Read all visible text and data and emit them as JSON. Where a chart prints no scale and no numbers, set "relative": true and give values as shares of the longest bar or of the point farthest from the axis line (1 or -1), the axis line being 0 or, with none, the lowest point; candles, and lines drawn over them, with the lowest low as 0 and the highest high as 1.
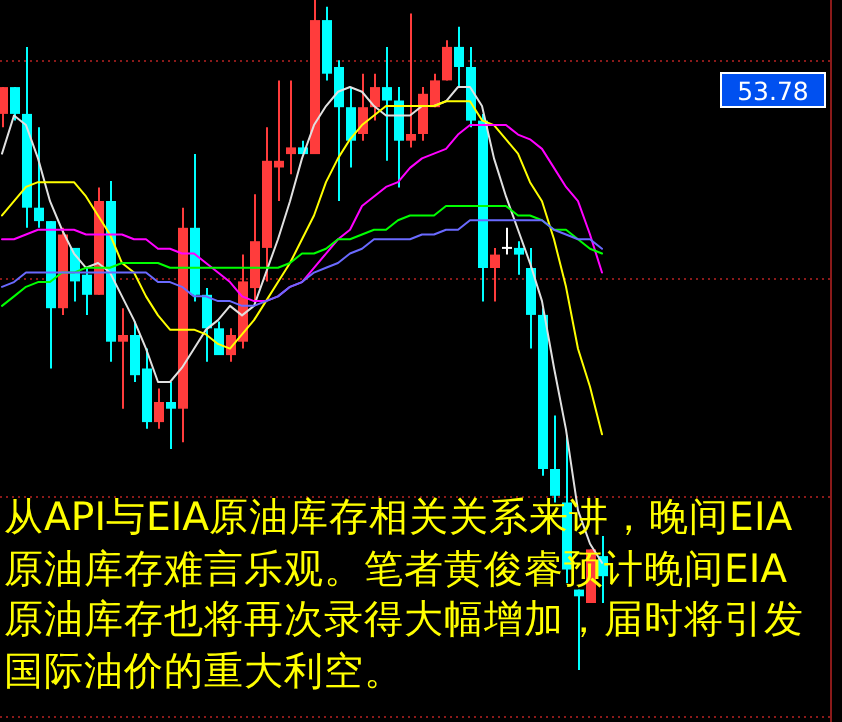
{
  "chart_data": [
    {
      "type": "candlestick",
      "relative": true,
      "ref_lines": [
        {
          "axis": "y",
          "value": 0.91,
          "color": "#8b1a1a",
          "line_style": "dotted"
        },
        {
          "axis": "y",
          "value": 0.585,
          "color": "#8b1a1a",
          "line_style": "dotted"
        },
        {
          "axis": "y",
          "value": 0.26,
          "color": "#8b1a1a",
          "line_style": "dotted"
        },
        {
          "axis": "y",
          "value": -0.07,
          "color": "#8b1a1a",
          "line_style": "dotted"
        }
      ],
      "categories": [
        null,
        null,
        null,
        null,
        null,
        null,
        null,
        null,
        null,
        null,
        null,
        null,
        null,
        null,
        null,
        null,
        null,
        null,
        null,
        null,
        null,
        null,
        null,
        null,
        null,
        null,
        null,
        null,
        null,
        null,
        null,
        null,
        null,
        null,
        null,
        null,
        null,
        null,
        null,
        null,
        null,
        null,
        null,
        null,
        null,
        null,
        null,
        null,
        null,
        null,
        null
      ],
      "ohlc": [
        [
          0.83,
          0.87,
          0.81,
          0.87
        ],
        [
          0.87,
          0.87,
          0.82,
          0.83
        ],
        [
          0.83,
          0.93,
          0.66,
          0.69
        ],
        [
          0.69,
          0.81,
          0.66,
          0.67
        ],
        [
          0.67,
          0.67,
          0.45,
          0.54
        ],
        [
          0.54,
          0.66,
          0.53,
          0.65
        ],
        [
          0.63,
          0.63,
          0.55,
          0.58
        ],
        [
          0.59,
          0.6,
          0.53,
          0.56
        ],
        [
          0.56,
          0.72,
          0.56,
          0.7
        ],
        [
          0.7,
          0.73,
          0.46,
          0.49
        ],
        [
          0.49,
          0.54,
          0.39,
          0.5
        ],
        [
          0.5,
          0.52,
          0.43,
          0.44
        ],
        [
          0.45,
          0.48,
          0.36,
          0.37
        ],
        [
          0.37,
          0.42,
          0.36,
          0.4
        ],
        [
          0.4,
          0.43,
          0.33,
          0.39
        ],
        [
          0.39,
          0.69,
          0.34,
          0.66
        ],
        [
          0.66,
          0.77,
          0.55,
          0.56
        ],
        [
          0.56,
          0.57,
          0.46,
          0.51
        ],
        [
          0.51,
          0.52,
          0.47,
          0.47
        ],
        [
          0.47,
          0.51,
          0.46,
          0.5
        ],
        [
          0.49,
          0.62,
          0.48,
          0.58
        ],
        [
          0.57,
          0.71,
          0.55,
          0.64
        ],
        [
          0.63,
          0.81,
          0.58,
          0.76
        ],
        [
          0.75,
          0.88,
          0.7,
          0.76
        ],
        [
          0.77,
          0.88,
          0.74,
          0.78
        ],
        [
          0.78,
          0.79,
          0.77,
          0.77
        ],
        [
          0.77,
          1.0,
          0.77,
          0.97
        ],
        [
          0.97,
          0.99,
          0.88,
          0.89
        ],
        [
          0.9,
          0.91,
          0.7,
          0.84
        ],
        [
          0.84,
          0.87,
          0.75,
          0.79
        ],
        [
          0.8,
          0.89,
          0.79,
          0.84
        ],
        [
          0.84,
          0.89,
          0.82,
          0.87
        ],
        [
          0.87,
          0.93,
          0.76,
          0.85
        ],
        [
          0.85,
          0.87,
          0.72,
          0.79
        ],
        [
          0.79,
          0.98,
          0.78,
          0.8
        ],
        [
          0.8,
          0.87,
          0.79,
          0.86
        ],
        [
          0.84,
          0.89,
          0.84,
          0.88
        ],
        [
          0.88,
          0.94,
          0.88,
          0.93
        ],
        [
          0.93,
          0.96,
          0.87,
          0.9
        ],
        [
          0.9,
          0.93,
          0.81,
          0.82
        ],
        [
          0.82,
          0.83,
          0.55,
          0.6
        ],
        [
          0.6,
          0.63,
          0.55,
          0.62
        ],
        [
          0.63,
          0.66,
          0.62,
          0.63
        ],
        [
          0.63,
          0.64,
          0.59,
          0.62
        ],
        [
          0.6,
          0.63,
          0.48,
          0.53
        ],
        [
          0.53,
          0.54,
          0.29,
          0.3
        ],
        [
          0.3,
          0.38,
          0.25,
          0.26
        ],
        [
          0.25,
          0.35,
          0.13,
          0.15
        ],
        [
          0.12,
          0.12,
          0.0,
          0.11
        ],
        [
          0.1,
          0.18,
          0.1,
          0.18
        ],
        [
          0.17,
          0.2,
          0.1,
          0.14
        ]
      ],
      "colors": [
        "#ff3c3c",
        "#00ffff",
        "#00ffff",
        "#00ffff",
        "#00ffff",
        "#ff3c3c",
        "#00ffff",
        "#00ffff",
        "#ff3c3c",
        "#00ffff",
        "#ff3c3c",
        "#00ffff",
        "#00ffff",
        "#ff3c3c",
        "#00ffff",
        "#ff3c3c",
        "#00ffff",
        "#00ffff",
        "#00ffff",
        "#ff3c3c",
        "#ff3c3c",
        "#ff3c3c",
        "#ff3c3c",
        "#ff3c3c",
        "#ff3c3c",
        "#00ffff",
        "#ff3c3c",
        "#00ffff",
        "#00ffff",
        "#00ffff",
        "#ff3c3c",
        "#ff3c3c",
        "#00ffff",
        "#00ffff",
        "#ff3c3c",
        "#ff3c3c",
        "#ff3c3c",
        "#ff3c3c",
        "#00ffff",
        "#00ffff",
        "#00ffff",
        "#ff3c3c",
        "#ffffff",
        "#00ffff",
        "#00ffff",
        "#00ffff",
        "#00ffff",
        "#00ffff",
        "#00ffff",
        "#ff3c3c",
        "#00ffff"
      ],
      "annotations": [
        "53.78",
        "从API与EIA原油库存相关关系来讲，晚间EIA原油库存难言乐观。笔者黄俊睿预计晚间EIA原油库存也将再次录得大幅增加，届时将引发国际油价的重大利空。"
      ]
    },
    {
      "type": "line",
      "relative": true,
      "categories": [
        null,
        null,
        null,
        null,
        null,
        null,
        null,
        null,
        null,
        null,
        null,
        null,
        null,
        null,
        null,
        null,
        null,
        null,
        null,
        null,
        null,
        null,
        null,
        null,
        null,
        null,
        null,
        null,
        null,
        null,
        null,
        null,
        null,
        null,
        null,
        null,
        null,
        null,
        null,
        null,
        null,
        null,
        null,
        null,
        null,
        null,
        null,
        null,
        null,
        null,
        null
      ],
      "series": [
        {
          "color": "#e0e0e0",
          "values": [
            0.86,
            0.94,
            0.92,
            0.85,
            0.76,
            0.7,
            0.65,
            0.62,
            0.63,
            0.61,
            0.56,
            0.51,
            0.45,
            0.38,
            0.38,
            0.41,
            0.45,
            0.49,
            0.51,
            0.54,
            0.52,
            0.54,
            0.61,
            0.68,
            0.76,
            0.85,
            0.92,
            0.96,
            0.99,
            1.0,
            0.99,
            0.96,
            0.94,
            0.94,
            0.94,
            0.96,
            0.96,
            0.97,
            1.0,
            1.0,
            0.96,
            0.85,
            0.77,
            0.7,
            0.63,
            0.55,
            0.41,
            0.28,
            0.11,
            0.04,
            0.0
          ]
        },
        {
          "color": "#ffff00",
          "values": [
            0.73,
            0.76,
            0.79,
            0.8,
            0.8,
            0.8,
            0.8,
            0.77,
            0.73,
            0.69,
            0.63,
            0.61,
            0.56,
            0.52,
            0.49,
            0.49,
            0.49,
            0.48,
            0.46,
            0.45,
            0.48,
            0.51,
            0.55,
            0.59,
            0.63,
            0.68,
            0.73,
            0.8,
            0.85,
            0.89,
            0.92,
            0.94,
            0.96,
            0.96,
            0.96,
            0.96,
            0.96,
            0.97,
            0.97,
            0.97,
            0.93,
            0.92,
            0.89,
            0.86,
            0.8,
            0.76,
            0.68,
            0.58,
            0.45,
            0.37,
            0.27
          ]
        },
        {
          "color": "#ff00ff",
          "values": [
            0.68,
            0.68,
            0.69,
            0.7,
            0.7,
            0.7,
            0.7,
            0.69,
            0.69,
            0.69,
            0.69,
            0.68,
            0.68,
            0.66,
            0.66,
            0.65,
            0.65,
            0.63,
            0.61,
            0.59,
            0.56,
            0.55,
            0.55,
            0.56,
            0.58,
            0.59,
            0.62,
            0.65,
            0.68,
            0.7,
            0.75,
            0.77,
            0.79,
            0.8,
            0.83,
            0.85,
            0.86,
            0.87,
            0.9,
            0.92,
            0.92,
            0.92,
            0.92,
            0.9,
            0.89,
            0.87,
            0.83,
            0.79,
            0.76,
            0.69,
            0.61
          ]
        },
        {
          "color": "#00ff00",
          "values": [
            0.54,
            0.56,
            0.58,
            0.59,
            0.59,
            0.61,
            0.61,
            0.62,
            0.62,
            0.62,
            0.63,
            0.63,
            0.63,
            0.63,
            0.62,
            0.62,
            0.62,
            0.62,
            0.62,
            0.62,
            0.62,
            0.62,
            0.62,
            0.62,
            0.63,
            0.65,
            0.65,
            0.66,
            0.68,
            0.68,
            0.69,
            0.7,
            0.7,
            0.72,
            0.73,
            0.73,
            0.73,
            0.75,
            0.75,
            0.75,
            0.75,
            0.75,
            0.75,
            0.73,
            0.73,
            0.72,
            0.7,
            0.7,
            0.68,
            0.66,
            0.65
          ]
        },
        {
          "color": "#6a6aff",
          "values": [
            0.58,
            0.59,
            0.61,
            0.61,
            0.61,
            0.61,
            0.61,
            0.61,
            0.61,
            0.61,
            0.61,
            0.61,
            0.61,
            0.59,
            0.59,
            0.58,
            0.56,
            0.56,
            0.55,
            0.55,
            0.54,
            0.54,
            0.55,
            0.56,
            0.58,
            0.59,
            0.61,
            0.62,
            0.63,
            0.65,
            0.66,
            0.68,
            0.68,
            0.68,
            0.68,
            0.69,
            0.69,
            0.7,
            0.7,
            0.72,
            0.72,
            0.72,
            0.72,
            0.72,
            0.72,
            0.72,
            0.7,
            0.69,
            0.68,
            0.68,
            0.66
          ]
        }
      ]
    }
  ]
}
